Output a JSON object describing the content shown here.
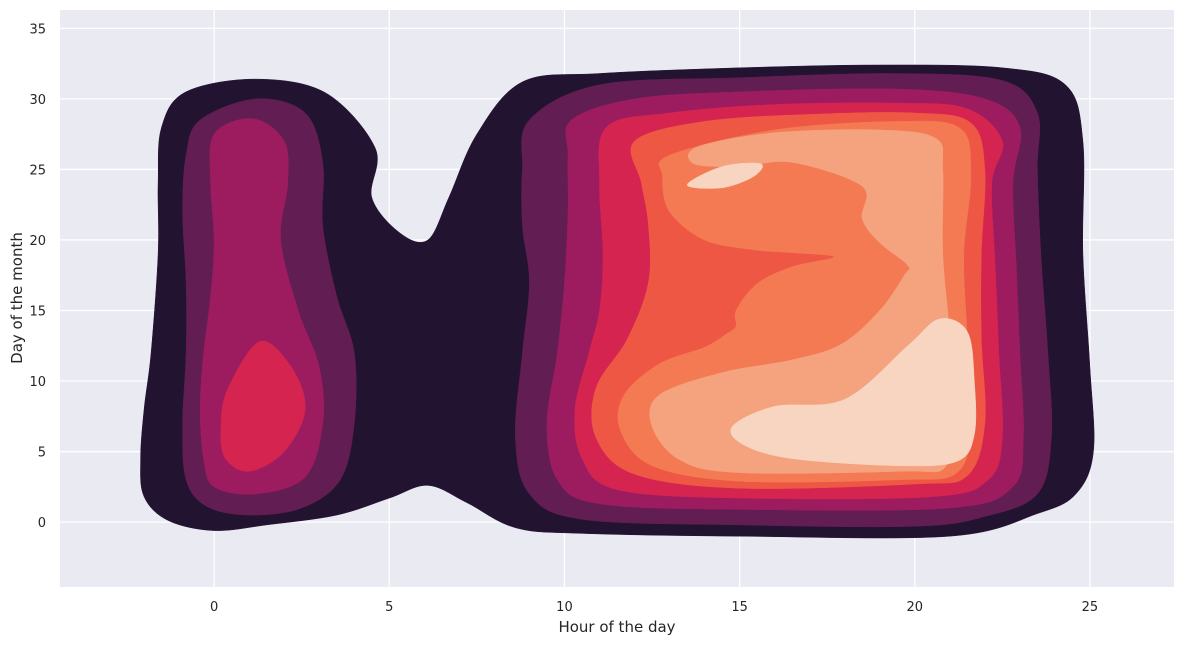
{
  "chart_data": {
    "type": "heatmap",
    "subtype": "kde-density-contour",
    "title": "",
    "xlabel": "Hour of the day",
    "ylabel": "Day of the month",
    "xlim": [
      -4.4,
      27.4
    ],
    "ylim": [
      -4.6,
      36.3
    ],
    "xticks": [
      0,
      5,
      10,
      15,
      20,
      25
    ],
    "yticks": [
      0,
      5,
      10,
      15,
      20,
      25,
      30,
      35
    ],
    "grid": true,
    "background": "#eaeaf2",
    "gridColor": "#ffffff",
    "levelColors": [
      "#221331",
      "#621d52",
      "#9c1c5f",
      "#d4244f",
      "#ef5745",
      "#f37a53",
      "#f5a27e",
      "#f7d5c0"
    ],
    "contours": [
      {
        "level": 1,
        "points": [
          [
            -0.8,
            30.5
          ],
          [
            1.2,
            31.4
          ],
          [
            3.2,
            30.4
          ],
          [
            4.6,
            26.5
          ],
          [
            4.5,
            23
          ],
          [
            5.3,
            20.5
          ],
          [
            6.1,
            20
          ],
          [
            6.7,
            23
          ],
          [
            7.5,
            27.5
          ],
          [
            8.8,
            31.2
          ],
          [
            11,
            31.8
          ],
          [
            15,
            32.2
          ],
          [
            19,
            32.4
          ],
          [
            22.5,
            32.2
          ],
          [
            24.3,
            31
          ],
          [
            24.8,
            27
          ],
          [
            24.8,
            19
          ],
          [
            25,
            11
          ],
          [
            25.1,
            5
          ],
          [
            24.6,
            2
          ],
          [
            23.5,
            0.6
          ],
          [
            21,
            -1
          ],
          [
            15,
            -1
          ],
          [
            10.5,
            -0.8
          ],
          [
            8.6,
            -0.4
          ],
          [
            7.2,
            1.4
          ],
          [
            6.1,
            2.6
          ],
          [
            5,
            1.7
          ],
          [
            3.5,
            0.5
          ],
          [
            1.5,
            -0.2
          ],
          [
            0,
            -0.6
          ],
          [
            -1.3,
            0.1
          ],
          [
            -2,
            1.8
          ],
          [
            -2.1,
            4.5
          ],
          [
            -2,
            8
          ],
          [
            -1.8,
            12
          ],
          [
            -1.6,
            19
          ],
          [
            -1.6,
            24
          ],
          [
            -1.5,
            28
          ]
        ]
      },
      {
        "level": 2,
        "points": [
          [
            -0.4,
            28.5
          ],
          [
            1.2,
            30
          ],
          [
            2.6,
            29
          ],
          [
            3.1,
            25.5
          ],
          [
            3.1,
            21
          ],
          [
            3.5,
            16
          ],
          [
            4,
            12
          ],
          [
            4,
            7
          ],
          [
            3.6,
            3
          ],
          [
            2.5,
            1
          ],
          [
            1,
            0.5
          ],
          [
            -0.2,
            1.1
          ],
          [
            -0.8,
            3
          ],
          [
            -0.9,
            7
          ],
          [
            -0.8,
            12
          ],
          [
            -0.8,
            17
          ],
          [
            -0.9,
            22
          ],
          [
            -0.8,
            26
          ]
        ]
      },
      {
        "level": 2,
        "points": [
          [
            9,
            28.5
          ],
          [
            11,
            31
          ],
          [
            15,
            31.5
          ],
          [
            19.5,
            31.8
          ],
          [
            22.5,
            31.3
          ],
          [
            23.5,
            29
          ],
          [
            23.5,
            25
          ],
          [
            23.6,
            19
          ],
          [
            23.8,
            12
          ],
          [
            23.9,
            6
          ],
          [
            23.5,
            2
          ],
          [
            22,
            0.4
          ],
          [
            20,
            -0.3
          ],
          [
            15,
            -0.2
          ],
          [
            10.5,
            0.2
          ],
          [
            9,
            2
          ],
          [
            8.6,
            6
          ],
          [
            8.8,
            12
          ],
          [
            9,
            17
          ],
          [
            8.8,
            21
          ],
          [
            8.8,
            25
          ]
        ]
      },
      {
        "level": 3,
        "points": [
          [
            0,
            27.5
          ],
          [
            1.1,
            28.6
          ],
          [
            2,
            27
          ],
          [
            2.1,
            24
          ],
          [
            1.9,
            20
          ],
          [
            2.4,
            15
          ],
          [
            3,
            11
          ],
          [
            3.1,
            7
          ],
          [
            2.6,
            3.2
          ],
          [
            1.2,
            2
          ],
          [
            0,
            2.5
          ],
          [
            -0.3,
            4.5
          ],
          [
            -0.4,
            8
          ],
          [
            -0.3,
            12
          ],
          [
            -0.1,
            16
          ],
          [
            0,
            20
          ],
          [
            -0.1,
            24
          ]
        ]
      },
      {
        "level": 3,
        "points": [
          [
            10.2,
            28.5
          ],
          [
            12,
            30
          ],
          [
            15,
            30.5
          ],
          [
            19.5,
            30.7
          ],
          [
            22,
            30
          ],
          [
            23,
            28
          ],
          [
            22.8,
            24
          ],
          [
            22.9,
            18
          ],
          [
            23,
            12
          ],
          [
            23.1,
            6
          ],
          [
            22.8,
            2.5
          ],
          [
            21,
            1
          ],
          [
            15,
            0.9
          ],
          [
            11,
            1.3
          ],
          [
            9.8,
            3
          ],
          [
            9.5,
            7
          ],
          [
            9.8,
            12
          ],
          [
            10,
            17
          ],
          [
            10.1,
            22
          ],
          [
            10.1,
            26
          ]
        ]
      },
      {
        "level": 4,
        "points": [
          [
            0.4,
            9.5
          ],
          [
            1.3,
            12.8
          ],
          [
            2.2,
            11
          ],
          [
            2.6,
            8
          ],
          [
            2,
            5
          ],
          [
            1,
            3.6
          ],
          [
            0.3,
            4.6
          ],
          [
            0.2,
            7
          ]
        ]
      },
      {
        "level": 4,
        "points": [
          [
            11.2,
            28
          ],
          [
            13,
            29
          ],
          [
            16,
            29.6
          ],
          [
            19.5,
            29.7
          ],
          [
            21.5,
            29.3
          ],
          [
            22.5,
            27
          ],
          [
            22.2,
            24
          ],
          [
            22.3,
            18
          ],
          [
            22.4,
            12
          ],
          [
            22.5,
            6
          ],
          [
            22.1,
            3
          ],
          [
            20.5,
            1.8
          ],
          [
            15,
            1.7
          ],
          [
            11.5,
            2.3
          ],
          [
            10.5,
            4.5
          ],
          [
            10.3,
            8
          ],
          [
            10.7,
            12
          ],
          [
            11,
            15
          ],
          [
            11.1,
            19
          ],
          [
            11,
            24
          ]
        ]
      },
      {
        "level": 5,
        "points": [
          [
            12,
            27
          ],
          [
            14,
            28.4
          ],
          [
            17,
            28.9
          ],
          [
            20,
            29
          ],
          [
            21.6,
            28.3
          ],
          [
            22,
            25
          ],
          [
            21.9,
            19
          ],
          [
            21.9,
            13
          ],
          [
            22,
            7
          ],
          [
            21.5,
            3.3
          ],
          [
            20,
            2.7
          ],
          [
            15,
            2.4
          ],
          [
            12,
            3.4
          ],
          [
            10.9,
            6
          ],
          [
            10.9,
            9.5
          ],
          [
            11.8,
            13
          ],
          [
            12.4,
            17
          ],
          [
            12.4,
            21
          ],
          [
            12.2,
            24
          ]
        ]
      },
      {
        "level": 6,
        "points": [
          [
            13,
            26
          ],
          [
            16,
            27.8
          ],
          [
            19.5,
            28.4
          ],
          [
            21.3,
            27.9
          ],
          [
            21.6,
            24.5
          ],
          [
            21.4,
            19
          ],
          [
            21.5,
            13
          ],
          [
            21.6,
            7
          ],
          [
            21.2,
            3.5
          ],
          [
            19.5,
            3
          ],
          [
            15,
            2.9
          ],
          [
            12.5,
            4
          ],
          [
            11.6,
            6.5
          ],
          [
            11.7,
            9
          ],
          [
            12.7,
            11.2
          ],
          [
            14,
            12.4
          ],
          [
            14.6,
            13.3
          ],
          [
            14.9,
            13.9
          ],
          [
            14.9,
            15
          ],
          [
            15.5,
            16.9
          ],
          [
            16.5,
            18.1
          ],
          [
            17.7,
            18.8
          ],
          [
            16.5,
            19.1
          ],
          [
            15.4,
            19.3
          ],
          [
            14,
            20
          ],
          [
            13,
            22
          ],
          [
            12.8,
            24.5
          ]
        ]
      },
      {
        "level": 7,
        "points": [
          [
            13.8,
            26.6
          ],
          [
            16,
            27.6
          ],
          [
            19,
            27.8
          ],
          [
            20.6,
            27.2
          ],
          [
            20.8,
            25
          ],
          [
            20.8,
            19
          ],
          [
            21,
            13
          ],
          [
            21,
            8
          ],
          [
            20.9,
            4
          ],
          [
            19.6,
            3.6
          ],
          [
            15,
            3.5
          ],
          [
            13.3,
            4.4
          ],
          [
            12.5,
            6.8
          ],
          [
            12.7,
            9
          ],
          [
            14.5,
            10.6
          ],
          [
            16.5,
            11.5
          ],
          [
            17.9,
            12.6
          ],
          [
            19,
            15
          ],
          [
            19.7,
            17.5
          ],
          [
            19.8,
            18.2
          ],
          [
            19,
            19.8
          ],
          [
            18.5,
            21.5
          ],
          [
            18.5,
            23.8
          ],
          [
            16.5,
            25.5
          ],
          [
            15,
            25.2
          ],
          [
            13.7,
            25.4
          ]
        ]
      },
      {
        "level": 8,
        "points": [
          [
            14.8,
            6.8
          ],
          [
            16,
            8.2
          ],
          [
            18,
            8.7
          ],
          [
            19.8,
            12.5
          ],
          [
            20.7,
            14.4
          ],
          [
            21.5,
            13.5
          ],
          [
            21.7,
            10
          ],
          [
            21.7,
            6.2
          ],
          [
            21.2,
            4.3
          ],
          [
            19.5,
            4
          ],
          [
            16.5,
            4.5
          ],
          [
            15.1,
            5.5
          ]
        ]
      },
      {
        "level": 8,
        "points": [
          [
            13.5,
            23.9
          ],
          [
            14.5,
            25.2
          ],
          [
            15.6,
            25.4
          ],
          [
            15.4,
            24.5
          ],
          [
            14.5,
            23.7
          ]
        ]
      }
    ]
  }
}
